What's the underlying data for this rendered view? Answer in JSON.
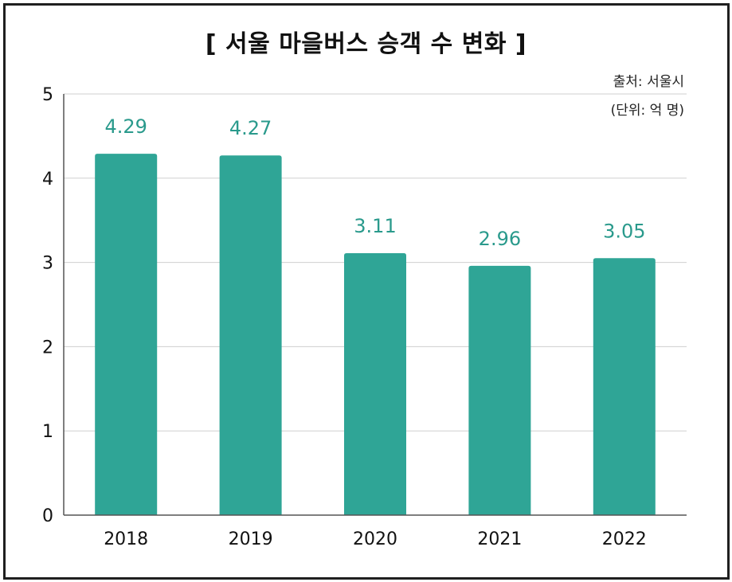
{
  "chart_data": {
    "type": "bar",
    "title": "[ 서울 마을버스 승객 수 변화 ]",
    "source": "출처: 서울시",
    "unit": "(단위: 억 명)",
    "categories": [
      "2018",
      "2019",
      "2020",
      "2021",
      "2022"
    ],
    "values": [
      4.29,
      4.27,
      3.11,
      2.96,
      3.05
    ],
    "data_labels": [
      "4.29",
      "4.27",
      "3.11",
      "2.96",
      "3.05"
    ],
    "ylim": [
      0,
      5
    ],
    "yticks": [
      "0",
      "1",
      "2",
      "3",
      "4",
      "5"
    ],
    "grid": true,
    "bar_color": "#2fa596",
    "label_color": "#2a9a8c"
  }
}
